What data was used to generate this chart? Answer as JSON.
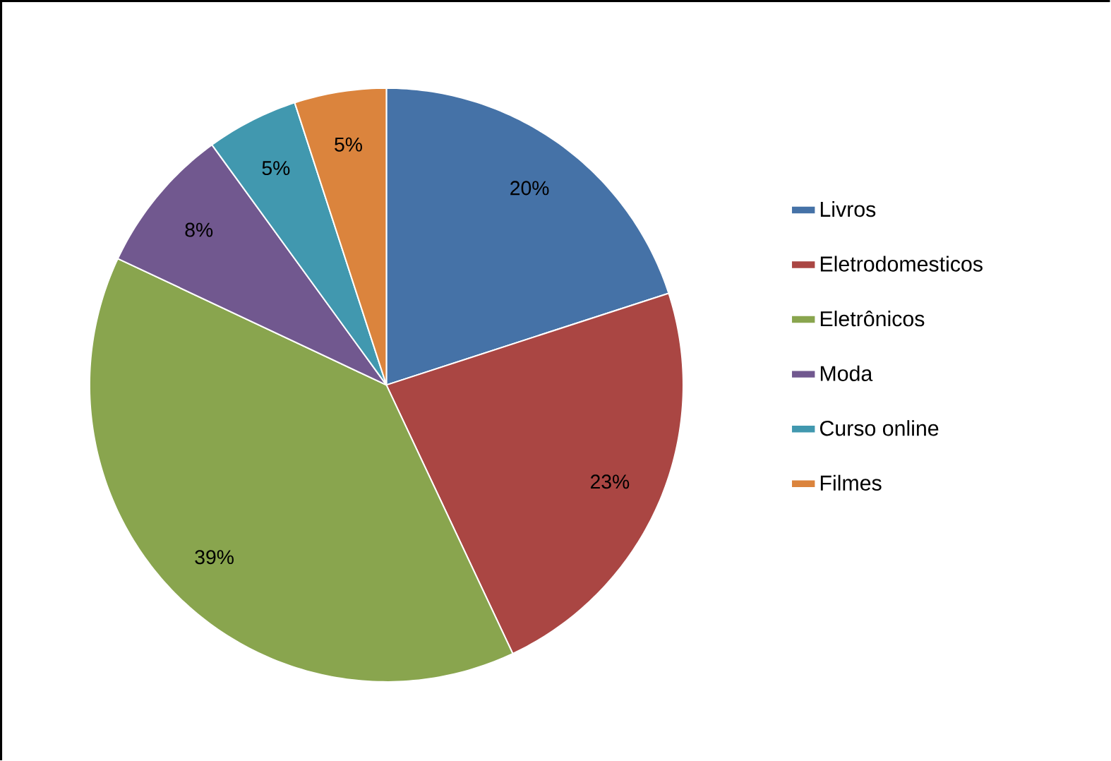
{
  "chart_data": {
    "type": "pie",
    "categories": [
      "Livros",
      "Eletrodomesticos",
      "Eletrônicos",
      "Moda",
      "Curso online",
      "Filmes"
    ],
    "values": [
      20,
      23,
      39,
      8,
      5,
      5
    ],
    "value_labels": [
      "20%",
      "23%",
      "39%",
      "8%",
      "5%",
      "5%"
    ],
    "colors": [
      "#4572a7",
      "#aa4643",
      "#89a54e",
      "#71588f",
      "#4198af",
      "#db843d"
    ],
    "legend": "right"
  }
}
